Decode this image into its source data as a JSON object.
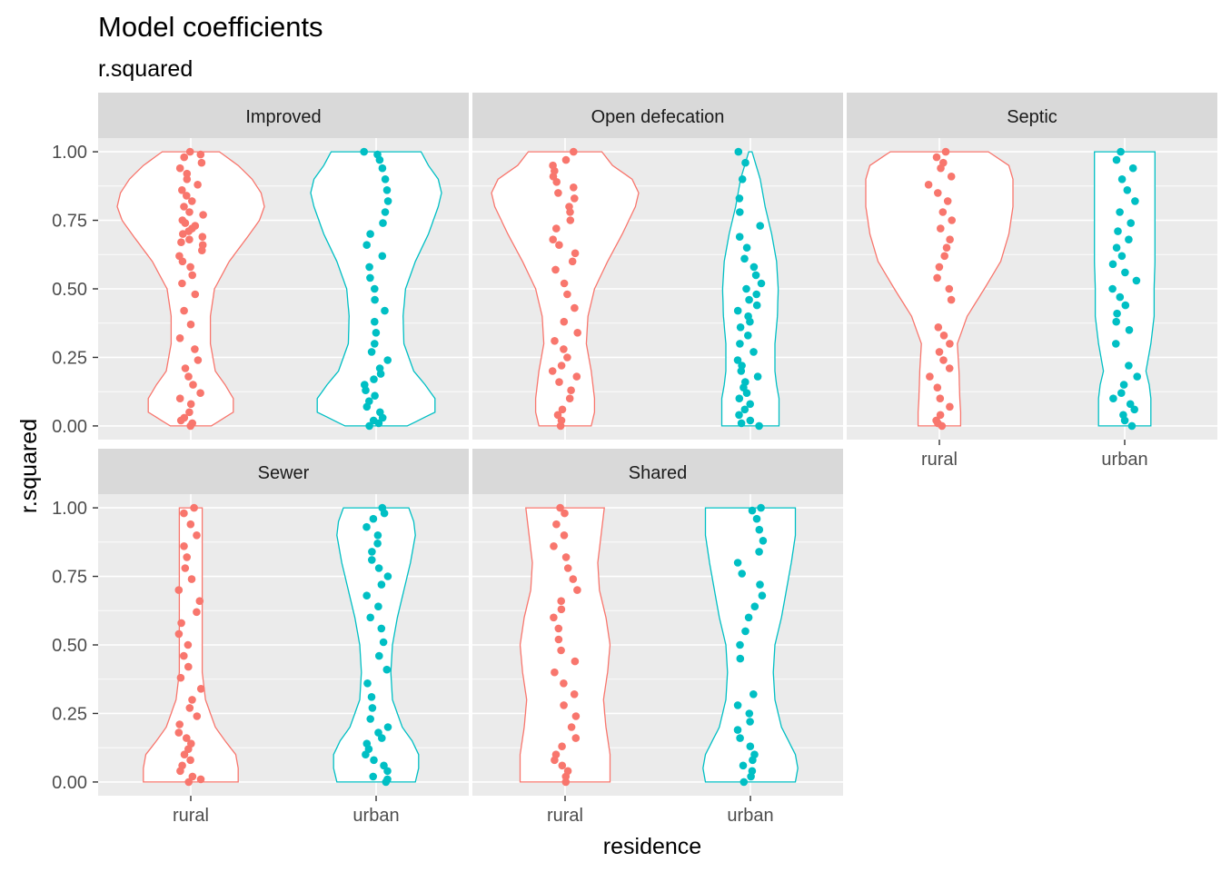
{
  "chart_data": {
    "type": "violin",
    "title": "Model coefficients",
    "subtitle": "r.squared",
    "xlabel": "residence",
    "ylabel": "r.squared",
    "categories": [
      "rural",
      "urban"
    ],
    "ylim": [
      -0.05,
      1.05
    ],
    "yticks": [
      0,
      0.25,
      0.5,
      0.75,
      1
    ],
    "ytick_labels": [
      "0.00",
      "0.25",
      "0.50",
      "0.75",
      "1.00"
    ],
    "colors": {
      "rural": "#F8766D",
      "urban": "#00BFC4"
    },
    "panel_background": "#EBEBEB",
    "strip_background": "#D9D9D9",
    "grid": true,
    "legend": "none",
    "facets": [
      {
        "name": "Improved",
        "series": [
          {
            "group": "rural",
            "density": [
              [
                0,
                0.25
              ],
              [
                0.05,
                0.52
              ],
              [
                0.1,
                0.52
              ],
              [
                0.15,
                0.42
              ],
              [
                0.2,
                0.3
              ],
              [
                0.3,
                0.24
              ],
              [
                0.4,
                0.24
              ],
              [
                0.5,
                0.29
              ],
              [
                0.6,
                0.47
              ],
              [
                0.7,
                0.72
              ],
              [
                0.75,
                0.84
              ],
              [
                0.8,
                0.9
              ],
              [
                0.85,
                0.86
              ],
              [
                0.9,
                0.75
              ],
              [
                0.95,
                0.58
              ],
              [
                1,
                0.35
              ]
            ],
            "points": [
              0.0,
              0.01,
              0.02,
              0.03,
              0.05,
              0.08,
              0.1,
              0.12,
              0.15,
              0.18,
              0.21,
              0.24,
              0.28,
              0.32,
              0.37,
              0.42,
              0.48,
              0.52,
              0.55,
              0.58,
              0.6,
              0.62,
              0.64,
              0.66,
              0.67,
              0.68,
              0.69,
              0.7,
              0.71,
              0.72,
              0.73,
              0.74,
              0.75,
              0.77,
              0.78,
              0.8,
              0.82,
              0.84,
              0.86,
              0.88,
              0.9,
              0.92,
              0.94,
              0.96,
              0.98,
              0.99,
              1.0
            ]
          },
          {
            "group": "urban",
            "density": [
              [
                0,
                0.38
              ],
              [
                0.05,
                0.72
              ],
              [
                0.1,
                0.72
              ],
              [
                0.15,
                0.6
              ],
              [
                0.2,
                0.46
              ],
              [
                0.3,
                0.34
              ],
              [
                0.4,
                0.33
              ],
              [
                0.5,
                0.36
              ],
              [
                0.6,
                0.48
              ],
              [
                0.7,
                0.64
              ],
              [
                0.8,
                0.76
              ],
              [
                0.85,
                0.8
              ],
              [
                0.9,
                0.76
              ],
              [
                0.95,
                0.64
              ],
              [
                1,
                0.55
              ]
            ],
            "points": [
              0.0,
              0.01,
              0.02,
              0.03,
              0.05,
              0.07,
              0.09,
              0.11,
              0.13,
              0.15,
              0.17,
              0.19,
              0.21,
              0.24,
              0.27,
              0.3,
              0.34,
              0.38,
              0.42,
              0.46,
              0.5,
              0.54,
              0.58,
              0.62,
              0.66,
              0.7,
              0.74,
              0.78,
              0.82,
              0.86,
              0.9,
              0.94,
              0.97,
              0.99,
              1.0
            ]
          }
        ]
      },
      {
        "name": "Open defecation",
        "series": [
          {
            "group": "rural",
            "density": [
              [
                0,
                0.32
              ],
              [
                0.05,
                0.36
              ],
              [
                0.1,
                0.36
              ],
              [
                0.2,
                0.32
              ],
              [
                0.3,
                0.26
              ],
              [
                0.4,
                0.28
              ],
              [
                0.5,
                0.36
              ],
              [
                0.6,
                0.52
              ],
              [
                0.7,
                0.7
              ],
              [
                0.8,
                0.86
              ],
              [
                0.85,
                0.9
              ],
              [
                0.9,
                0.82
              ],
              [
                0.95,
                0.58
              ],
              [
                1,
                0.45
              ]
            ],
            "points": [
              0.0,
              0.02,
              0.04,
              0.06,
              0.1,
              0.13,
              0.16,
              0.18,
              0.2,
              0.22,
              0.25,
              0.28,
              0.31,
              0.34,
              0.38,
              0.43,
              0.48,
              0.52,
              0.57,
              0.6,
              0.63,
              0.66,
              0.68,
              0.72,
              0.75,
              0.78,
              0.8,
              0.83,
              0.85,
              0.87,
              0.89,
              0.91,
              0.93,
              0.95,
              0.97,
              1.0
            ]
          },
          {
            "group": "urban",
            "density": [
              [
                0,
                0.35
              ],
              [
                0.1,
                0.35
              ],
              [
                0.15,
                0.32
              ],
              [
                0.2,
                0.3
              ],
              [
                0.3,
                0.3
              ],
              [
                0.4,
                0.33
              ],
              [
                0.5,
                0.34
              ],
              [
                0.6,
                0.32
              ],
              [
                0.7,
                0.26
              ],
              [
                0.8,
                0.18
              ],
              [
                0.9,
                0.12
              ],
              [
                0.95,
                0.07
              ],
              [
                1,
                0.02
              ]
            ],
            "points": [
              0.0,
              0.01,
              0.02,
              0.04,
              0.06,
              0.08,
              0.1,
              0.12,
              0.14,
              0.16,
              0.18,
              0.2,
              0.22,
              0.24,
              0.27,
              0.3,
              0.33,
              0.36,
              0.38,
              0.4,
              0.42,
              0.44,
              0.46,
              0.48,
              0.5,
              0.52,
              0.55,
              0.58,
              0.61,
              0.65,
              0.69,
              0.73,
              0.78,
              0.83,
              0.9,
              0.96,
              1.0
            ]
          }
        ]
      },
      {
        "name": "Septic",
        "series": [
          {
            "group": "rural",
            "density": [
              [
                0,
                0.26
              ],
              [
                0.05,
                0.26
              ],
              [
                0.1,
                0.25
              ],
              [
                0.2,
                0.24
              ],
              [
                0.3,
                0.22
              ],
              [
                0.4,
                0.34
              ],
              [
                0.5,
                0.55
              ],
              [
                0.6,
                0.75
              ],
              [
                0.7,
                0.85
              ],
              [
                0.8,
                0.9
              ],
              [
                0.9,
                0.9
              ],
              [
                0.95,
                0.85
              ],
              [
                1,
                0.6
              ]
            ],
            "points": [
              0.0,
              0.01,
              0.02,
              0.04,
              0.07,
              0.1,
              0.14,
              0.18,
              0.21,
              0.24,
              0.27,
              0.3,
              0.33,
              0.36,
              0.46,
              0.5,
              0.54,
              0.58,
              0.62,
              0.65,
              0.68,
              0.72,
              0.75,
              0.78,
              0.82,
              0.85,
              0.88,
              0.91,
              0.94,
              0.96,
              0.98,
              1.0
            ]
          },
          {
            "group": "urban",
            "density": [
              [
                0,
                0.32
              ],
              [
                0.05,
                0.32
              ],
              [
                0.1,
                0.32
              ],
              [
                0.15,
                0.3
              ],
              [
                0.2,
                0.26
              ],
              [
                0.3,
                0.32
              ],
              [
                0.4,
                0.36
              ],
              [
                0.5,
                0.36
              ],
              [
                0.6,
                0.37
              ],
              [
                0.7,
                0.37
              ],
              [
                0.8,
                0.37
              ],
              [
                0.9,
                0.37
              ],
              [
                1,
                0.37
              ]
            ],
            "points": [
              0.0,
              0.02,
              0.04,
              0.06,
              0.08,
              0.1,
              0.12,
              0.15,
              0.18,
              0.22,
              0.3,
              0.35,
              0.38,
              0.41,
              0.44,
              0.47,
              0.5,
              0.53,
              0.56,
              0.59,
              0.62,
              0.65,
              0.68,
              0.71,
              0.74,
              0.78,
              0.82,
              0.86,
              0.9,
              0.94,
              0.97,
              1.0
            ]
          }
        ]
      },
      {
        "name": "Sewer",
        "series": [
          {
            "group": "rural",
            "density": [
              [
                0,
                0.58
              ],
              [
                0.05,
                0.58
              ],
              [
                0.1,
                0.55
              ],
              [
                0.15,
                0.42
              ],
              [
                0.2,
                0.3
              ],
              [
                0.3,
                0.18
              ],
              [
                0.4,
                0.14
              ],
              [
                0.5,
                0.14
              ],
              [
                0.6,
                0.14
              ],
              [
                0.7,
                0.14
              ],
              [
                0.8,
                0.14
              ],
              [
                0.9,
                0.14
              ],
              [
                1,
                0.14
              ]
            ],
            "points": [
              0.0,
              0.01,
              0.02,
              0.04,
              0.06,
              0.08,
              0.1,
              0.12,
              0.14,
              0.16,
              0.18,
              0.21,
              0.24,
              0.27,
              0.3,
              0.34,
              0.38,
              0.42,
              0.46,
              0.5,
              0.54,
              0.58,
              0.62,
              0.66,
              0.7,
              0.74,
              0.78,
              0.82,
              0.86,
              0.9,
              0.94,
              0.98,
              1.0
            ]
          },
          {
            "group": "urban",
            "density": [
              [
                0,
                0.48
              ],
              [
                0.05,
                0.52
              ],
              [
                0.1,
                0.52
              ],
              [
                0.15,
                0.44
              ],
              [
                0.2,
                0.32
              ],
              [
                0.3,
                0.2
              ],
              [
                0.4,
                0.18
              ],
              [
                0.5,
                0.2
              ],
              [
                0.6,
                0.26
              ],
              [
                0.7,
                0.34
              ],
              [
                0.8,
                0.42
              ],
              [
                0.9,
                0.48
              ],
              [
                0.95,
                0.46
              ],
              [
                1,
                0.4
              ]
            ],
            "points": [
              0.0,
              0.01,
              0.02,
              0.04,
              0.06,
              0.08,
              0.1,
              0.12,
              0.14,
              0.16,
              0.18,
              0.2,
              0.23,
              0.27,
              0.31,
              0.36,
              0.41,
              0.46,
              0.51,
              0.56,
              0.6,
              0.64,
              0.68,
              0.72,
              0.75,
              0.78,
              0.81,
              0.84,
              0.87,
              0.9,
              0.93,
              0.96,
              0.98,
              1.0
            ]
          }
        ]
      },
      {
        "name": "Shared",
        "series": [
          {
            "group": "rural",
            "density": [
              [
                0,
                0.55
              ],
              [
                0.1,
                0.55
              ],
              [
                0.2,
                0.5
              ],
              [
                0.3,
                0.47
              ],
              [
                0.4,
                0.52
              ],
              [
                0.5,
                0.55
              ],
              [
                0.6,
                0.5
              ],
              [
                0.7,
                0.42
              ],
              [
                0.8,
                0.4
              ],
              [
                0.9,
                0.44
              ],
              [
                1,
                0.48
              ]
            ],
            "points": [
              0.0,
              0.02,
              0.04,
              0.06,
              0.08,
              0.1,
              0.13,
              0.16,
              0.2,
              0.24,
              0.28,
              0.32,
              0.36,
              0.4,
              0.44,
              0.48,
              0.52,
              0.56,
              0.6,
              0.63,
              0.66,
              0.7,
              0.74,
              0.78,
              0.82,
              0.86,
              0.9,
              0.94,
              0.98,
              1.0
            ]
          },
          {
            "group": "urban",
            "density": [
              [
                0,
                0.55
              ],
              [
                0.05,
                0.58
              ],
              [
                0.1,
                0.55
              ],
              [
                0.2,
                0.38
              ],
              [
                0.3,
                0.3
              ],
              [
                0.4,
                0.28
              ],
              [
                0.5,
                0.3
              ],
              [
                0.6,
                0.38
              ],
              [
                0.7,
                0.44
              ],
              [
                0.8,
                0.5
              ],
              [
                0.9,
                0.55
              ],
              [
                1,
                0.55
              ]
            ],
            "points": [
              0.0,
              0.02,
              0.04,
              0.06,
              0.08,
              0.1,
              0.13,
              0.16,
              0.19,
              0.22,
              0.25,
              0.28,
              0.32,
              0.45,
              0.5,
              0.55,
              0.6,
              0.64,
              0.68,
              0.72,
              0.76,
              0.8,
              0.84,
              0.88,
              0.92,
              0.96,
              0.99,
              1.0
            ]
          }
        ]
      }
    ]
  }
}
